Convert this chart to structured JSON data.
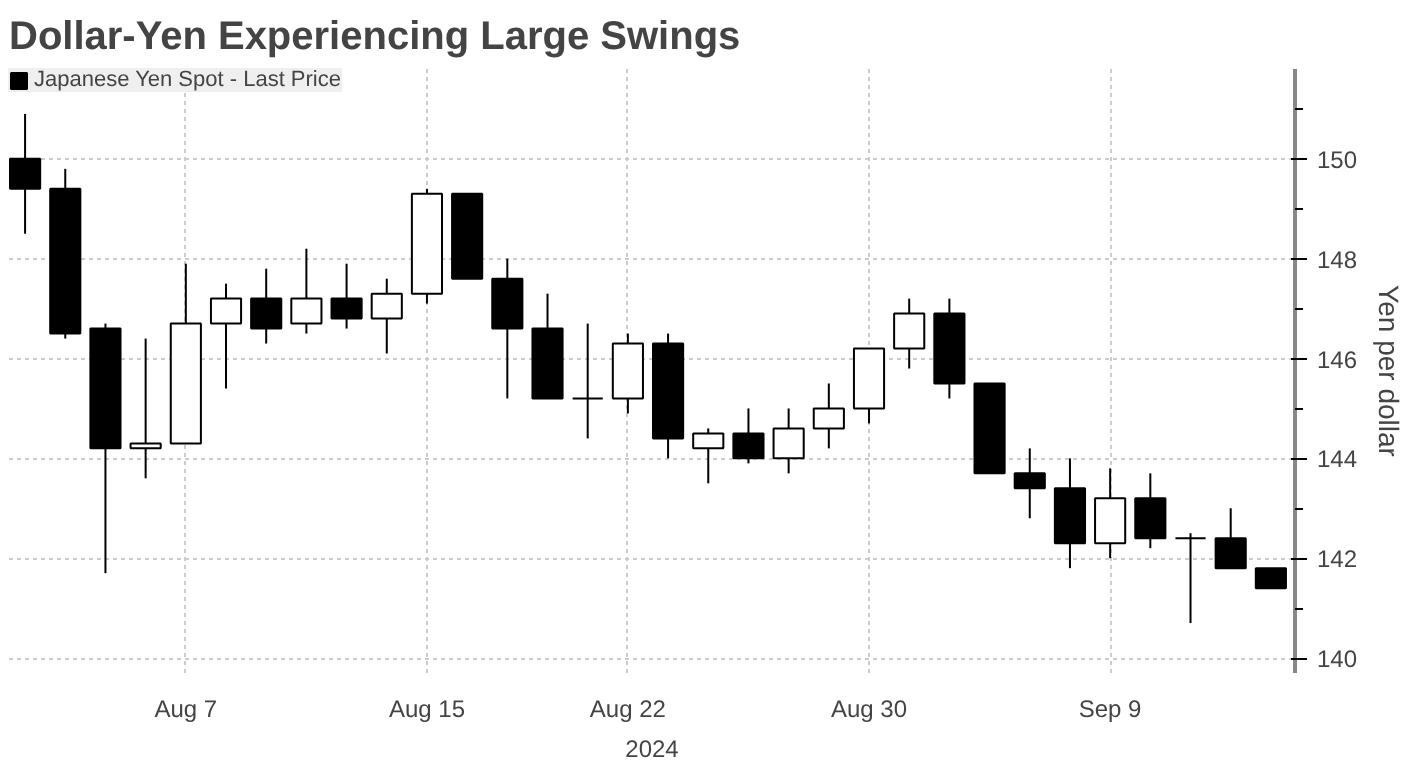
{
  "chart_data": {
    "type": "candlestick",
    "title": "Dollar-Yen Experiencing Large Swings",
    "xlabel": "2024",
    "ylabel": "Yen per dollar",
    "categories": [
      null,
      null,
      null,
      null,
      "Aug 7",
      null,
      null,
      null,
      null,
      null,
      "Aug 15",
      null,
      null,
      null,
      null,
      "Aug 22",
      null,
      null,
      null,
      null,
      null,
      "Aug 30",
      null,
      null,
      null,
      null,
      null,
      "Sep 9",
      null,
      null,
      null,
      null
    ],
    "series": [
      {
        "name": "Japanese Yen Spot - Last Price",
        "color": "#000000",
        "ohlc": [
          [
            150.0,
            150.9,
            148.5,
            149.4
          ],
          [
            149.4,
            149.8,
            146.4,
            146.5
          ],
          [
            146.6,
            146.7,
            141.7,
            144.2
          ],
          [
            144.2,
            146.4,
            143.6,
            144.3
          ],
          [
            144.3,
            147.9,
            144.3,
            146.7
          ],
          [
            146.7,
            147.5,
            145.4,
            147.2
          ],
          [
            147.2,
            147.8,
            146.3,
            146.6
          ],
          [
            146.7,
            148.2,
            146.5,
            147.2
          ],
          [
            147.2,
            147.9,
            146.6,
            146.8
          ],
          [
            146.8,
            147.6,
            146.1,
            147.3
          ],
          [
            147.3,
            149.4,
            147.1,
            149.3
          ],
          [
            149.3,
            149.3,
            147.6,
            147.6
          ],
          [
            147.6,
            148.0,
            145.2,
            146.6
          ],
          [
            146.6,
            147.3,
            145.2,
            145.2
          ],
          [
            145.2,
            146.7,
            144.4,
            145.2
          ],
          [
            145.2,
            146.5,
            144.9,
            146.3
          ],
          [
            146.3,
            146.5,
            144.0,
            144.4
          ],
          [
            144.2,
            144.6,
            143.5,
            144.5
          ],
          [
            144.5,
            145.0,
            143.9,
            144.0
          ],
          [
            144.0,
            145.0,
            143.7,
            144.6
          ],
          [
            144.6,
            145.5,
            144.2,
            145.0
          ],
          [
            145.0,
            146.2,
            144.7,
            146.2
          ],
          [
            146.2,
            147.2,
            145.8,
            146.9
          ],
          [
            146.9,
            147.2,
            145.2,
            145.5
          ],
          [
            145.5,
            145.5,
            143.7,
            143.7
          ],
          [
            143.7,
            144.2,
            142.8,
            143.4
          ],
          [
            143.4,
            144.0,
            141.8,
            142.3
          ],
          [
            142.3,
            143.8,
            142.0,
            143.2
          ],
          [
            143.2,
            143.7,
            142.2,
            142.4
          ],
          [
            142.4,
            142.5,
            140.7,
            142.4
          ],
          [
            142.4,
            143.0,
            141.8,
            141.8
          ],
          [
            141.8,
            141.8,
            141.4,
            141.4
          ]
        ]
      }
    ],
    "ylim": [
      139.7,
      151.8
    ],
    "yticks": [
      140,
      {
        "value": 141,
        "label": null
      },
      142,
      {
        "value": 143,
        "label": null
      },
      144,
      {
        "value": 145,
        "label": null
      },
      146,
      {
        "value": 147,
        "label": null
      },
      148,
      {
        "value": 149,
        "label": null
      },
      150,
      {
        "value": 151,
        "label": null
      }
    ],
    "grid": true,
    "legend": "top left"
  }
}
